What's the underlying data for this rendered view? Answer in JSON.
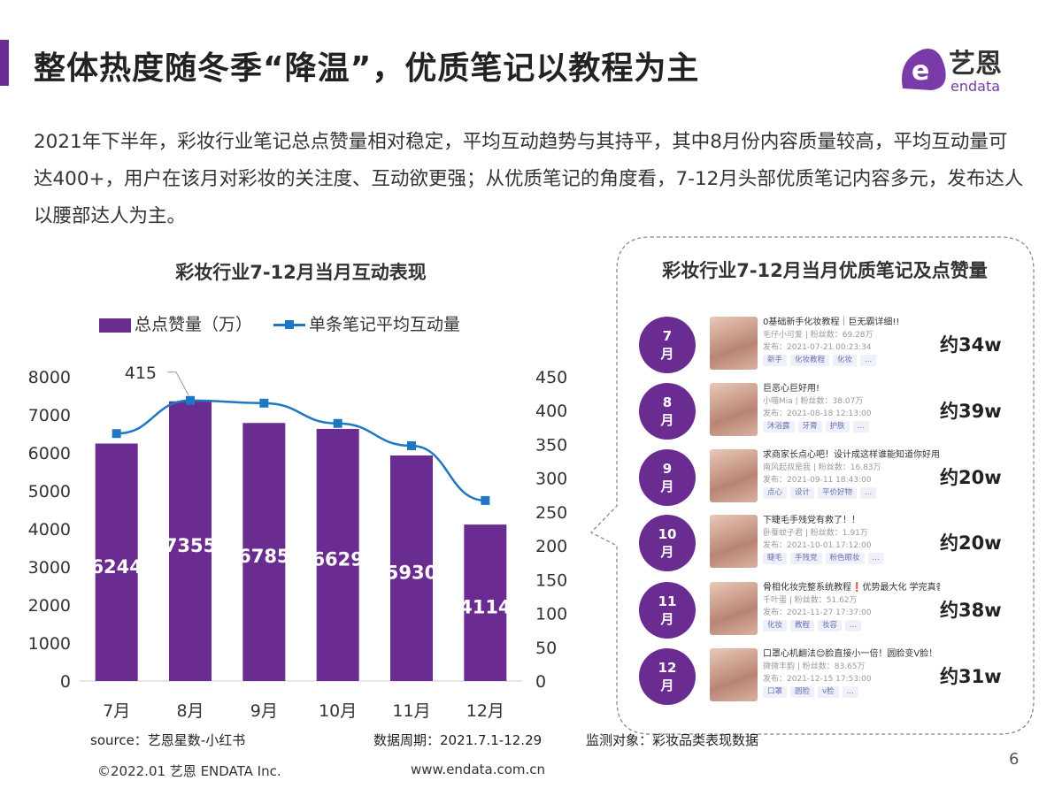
{
  "header": {
    "title": "整体热度随冬季“降温”，优质笔记以教程为主",
    "logo_text": "艺恩",
    "logo_sub": "endata",
    "accent_color": "#6a2c91"
  },
  "intro": "2021年下半年，彩妆行业笔记总点赞量相对稳定，平均互动趋势与其持平，其中8月份内容质量较高，平均互动量可达400+，用户在该月对彩妆的关注度、互动欲更强；从优质笔记的角度看，7-12月头部优质笔记内容多元，发布达人以腰部达人为主。",
  "chart_data": {
    "type": "bar+line",
    "title": "彩妆行业7-12月当月互动表现",
    "categories": [
      "7月",
      "8月",
      "9月",
      "10月",
      "11月",
      "12月"
    ],
    "series": [
      {
        "name": "总点赞量（万）",
        "type": "bar",
        "axis": "left",
        "color": "#6a2c91",
        "values": [
          6244,
          7355,
          6785,
          6629,
          5930,
          4114
        ]
      },
      {
        "name": "单条笔记平均互动量",
        "type": "line",
        "axis": "right",
        "color": "#1f77c4",
        "values": [
          366,
          415,
          411,
          381,
          348,
          267
        ]
      }
    ],
    "y_left": {
      "range": [
        0,
        8000
      ],
      "ticks": [
        0,
        1000,
        2000,
        3000,
        4000,
        5000,
        6000,
        7000,
        8000
      ]
    },
    "y_right": {
      "range": [
        0,
        450
      ],
      "ticks": [
        0,
        50,
        100,
        150,
        200,
        250,
        300,
        350,
        400,
        450
      ]
    },
    "annotation": "415",
    "legend": "top",
    "grid": false
  },
  "panel": {
    "title": "彩妆行业7-12月当月优质笔记及点赞量",
    "notes": [
      {
        "month": "7\n月",
        "title": "0基础新手化妆教程｜巨无霸详细!!",
        "author": "毛仔小可爱 | 粉丝数：69.28万",
        "date": "发布：2021-07-21 00:23:34",
        "tags": [
          "新手",
          "化妆教程",
          "化妆",
          "..."
        ],
        "likes": "约34w"
      },
      {
        "month": "8\n月",
        "title": "巨恶心巨好用!",
        "author": "小喵Mia | 粉丝数：38.07万",
        "date": "发布：2021-08-18 12:13:00",
        "tags": [
          "沐浴露",
          "牙膏",
          "护肤",
          "..."
        ],
        "likes": "约39w"
      },
      {
        "month": "9\n月",
        "title": "求商家长点心吧！设计成这样谁能知道你好用",
        "author": "南风起叔是我 | 粉丝数：16.83万",
        "date": "发布：2021-09-11 18:43:00",
        "tags": [
          "点心",
          "设计",
          "平价好物",
          "..."
        ],
        "likes": "约20w"
      },
      {
        "month": "10\n月",
        "title": "下睫毛手残党有救了！！",
        "author": "卧蚕蚊子君 | 粉丝数：1.91万",
        "date": "发布：2021-10-01 17:12:00",
        "tags": [
          "睫毛",
          "手残党",
          "粉色眼妆",
          "..."
        ],
        "likes": "约20w"
      },
      {
        "month": "11\n月",
        "title": "骨相化妆完整系统教程❗优势最大化 学完真香",
        "author": "千叶蛋 | 粉丝数：51.62万",
        "date": "发布：2021-11-27 17:37:00",
        "tags": [
          "化妆",
          "教程",
          "妆容",
          "..."
        ],
        "likes": "约38w"
      },
      {
        "month": "12\n月",
        "title": "口罩心机翻法😊脸直接小一倍！圆脸变V脸！",
        "author": "微微丰韵 | 粉丝数：83.65万",
        "date": "发布：2021-12-15 17:53:00",
        "tags": [
          "口罩",
          "圆脸",
          "v脸",
          "..."
        ],
        "likes": "约31w"
      }
    ]
  },
  "footer": {
    "source": "source：艺恩星数-小红书",
    "period": "数据周期：2021.7.1-12.29",
    "object": "监测对象：彩妆品类表现数据",
    "copyright": "©2022.01 艺恩 ENDATA Inc.",
    "site": "www.endata.com.cn",
    "page": "6"
  }
}
